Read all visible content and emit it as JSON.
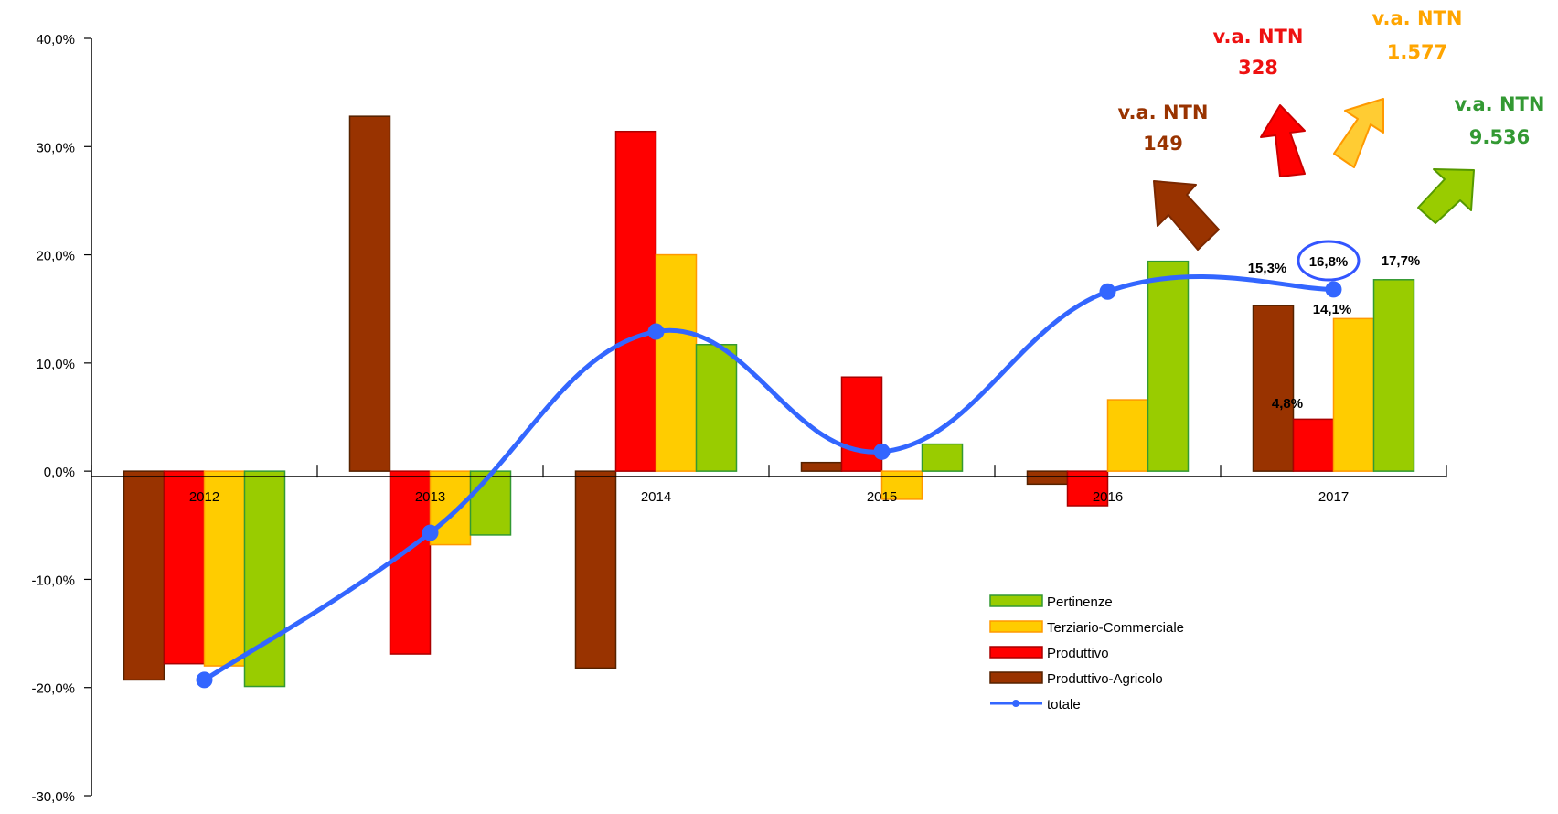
{
  "chart_data": {
    "type": "bar",
    "categories": [
      "2012",
      "2013",
      "2014",
      "2015",
      "2016",
      "2017"
    ],
    "series": [
      {
        "name": "Produttivo-Agricolo",
        "color": "#993300",
        "values": [
          -19.3,
          32.8,
          -18.2,
          0.8,
          -1.2,
          15.3
        ]
      },
      {
        "name": "Produttivo",
        "color": "#ff0000",
        "values": [
          -17.8,
          -16.9,
          31.4,
          8.7,
          -3.2,
          4.8
        ]
      },
      {
        "name": "Terziario-Commerciale",
        "color": "#ffcc00",
        "values": [
          -18.0,
          -6.8,
          20.0,
          -2.6,
          6.6,
          14.1
        ]
      },
      {
        "name": "Pertinenze",
        "color": "#99cc00",
        "values": [
          -19.9,
          -5.9,
          11.7,
          2.5,
          19.4,
          17.7
        ]
      }
    ],
    "line": {
      "name": "totale",
      "color": "#3366ff",
      "values": [
        -19.3,
        -5.7,
        12.9,
        1.8,
        16.6,
        16.8
      ]
    },
    "ylim": [
      -30,
      40
    ],
    "yticks": [
      "40,0%",
      "30,0%",
      "20,0%",
      "10,0%",
      "0,0%",
      "-10,0%",
      "-20,0%",
      "-30,0%"
    ],
    "legend_order": [
      "Pertinenze",
      "Terziario-Commerciale",
      "Produttivo",
      "Produttivo-Agricolo",
      "totale"
    ],
    "legend_position": "bottom-right",
    "data_labels": [
      {
        "text": "15,3%",
        "color": "#993300"
      },
      {
        "text": "16,8%",
        "color": "#3333ff"
      },
      {
        "text": "17,7%",
        "color": "#339966"
      },
      {
        "text": "14,1%",
        "color": "#ff9900"
      },
      {
        "text": "4,8%",
        "color": "#ff0000"
      }
    ],
    "annotations": [
      {
        "title": "v.a. NTN",
        "value": "149",
        "color": "#993300"
      },
      {
        "title": "v.a. NTN",
        "value": "328",
        "color": "#ee1111"
      },
      {
        "title": "v.a. NTN",
        "value": "1.577",
        "color": "#ffa500"
      },
      {
        "title": "v.a. NTN",
        "value": "9.536",
        "color": "#339933"
      }
    ]
  }
}
